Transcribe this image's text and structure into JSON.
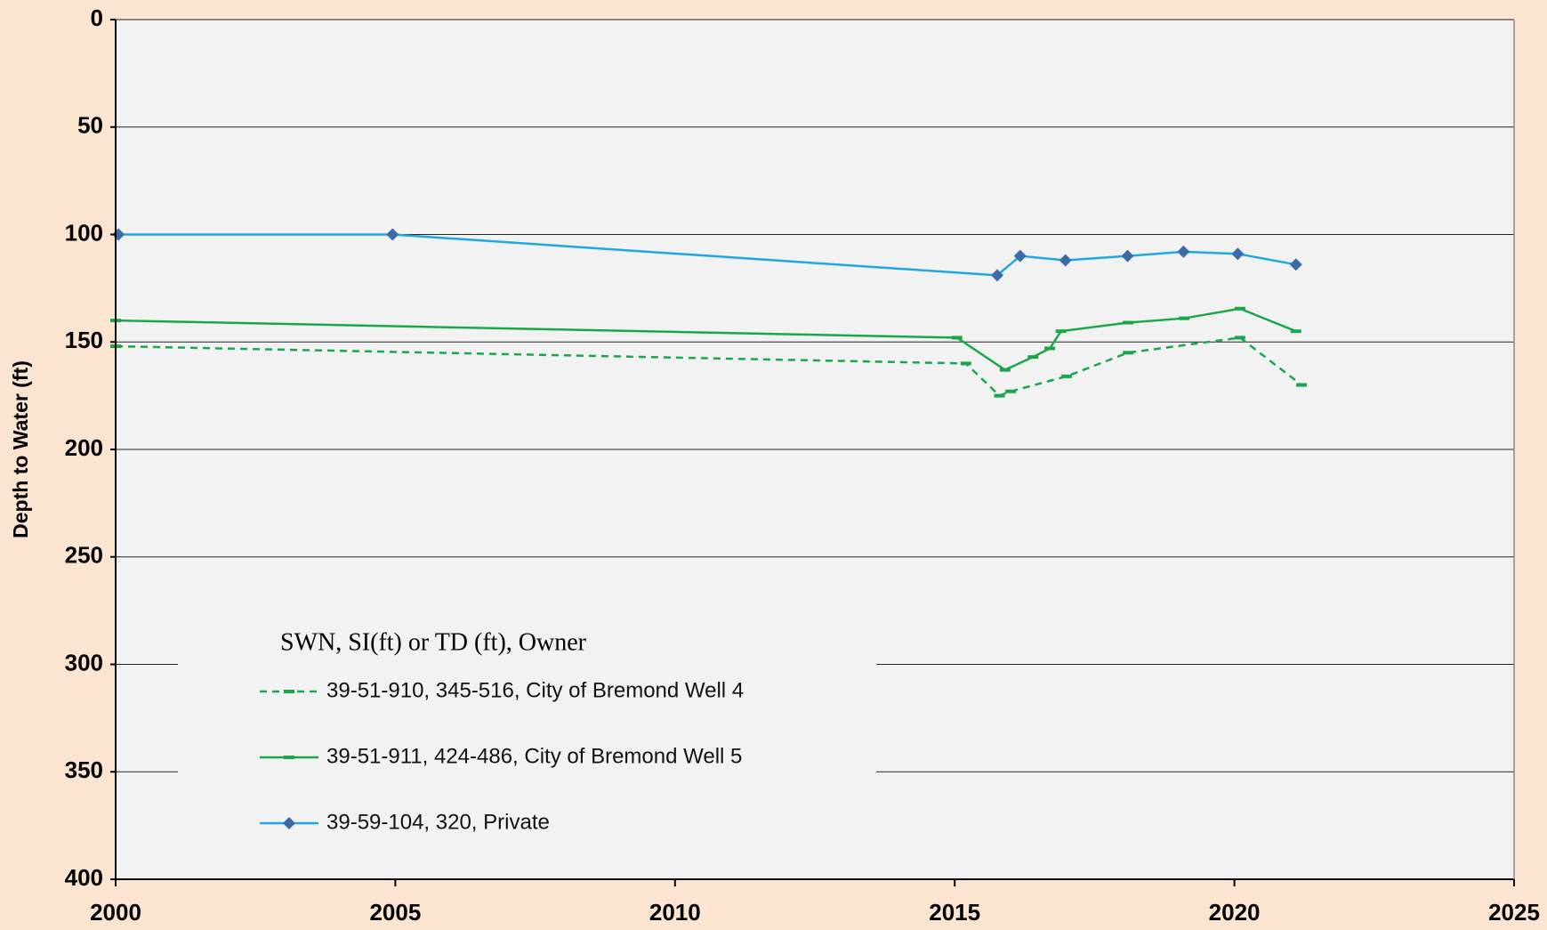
{
  "chart_data": {
    "type": "line",
    "ylabel": "Depth to Water (ft)",
    "legend_title": "SWN, SI(ft) or TD (ft), Owner",
    "legend": "lower left",
    "grid": true,
    "yaxis_inverted": true,
    "xlim": [
      2000,
      2025
    ],
    "xticks": [
      2000,
      2005,
      2010,
      2015,
      2020,
      2025
    ],
    "ylim": [
      0,
      400
    ],
    "yticks": [
      0,
      50,
      100,
      150,
      200,
      250,
      300,
      350,
      400
    ],
    "series": [
      {
        "name": "39-51-910, 345-516, City of Bremond Well 4",
        "color": "#19a74a",
        "dashed": true,
        "marker": "dash",
        "x": [
          2000.0,
          2015.2,
          2015.8,
          2016.0,
          2017.0,
          2018.1,
          2020.1,
          2021.2
        ],
        "values": [
          152,
          160,
          175,
          173,
          166,
          155,
          148,
          170
        ]
      },
      {
        "name": "39-51-911, 424-486, City of Bremond Well 5",
        "color": "#19a74a",
        "dashed": false,
        "marker": "dash",
        "x": [
          2000.0,
          2015.04,
          2015.9,
          2016.4,
          2016.7,
          2016.9,
          2018.1,
          2019.1,
          2020.1,
          2021.1
        ],
        "values": [
          140,
          148,
          163,
          157,
          153,
          145,
          141,
          139,
          134.5,
          145
        ]
      },
      {
        "name": "39-59-104, 320, Private",
        "color": "#1fa8e0",
        "marker_color": "#3d6ba8",
        "dashed": false,
        "marker": "diamond",
        "x": [
          2000.05,
          2004.95,
          2015.76,
          2016.17,
          2016.98,
          2018.09,
          2019.09,
          2020.06,
          2021.1
        ],
        "values": [
          100,
          100,
          119,
          110,
          112,
          110,
          108,
          109,
          114
        ]
      }
    ]
  }
}
